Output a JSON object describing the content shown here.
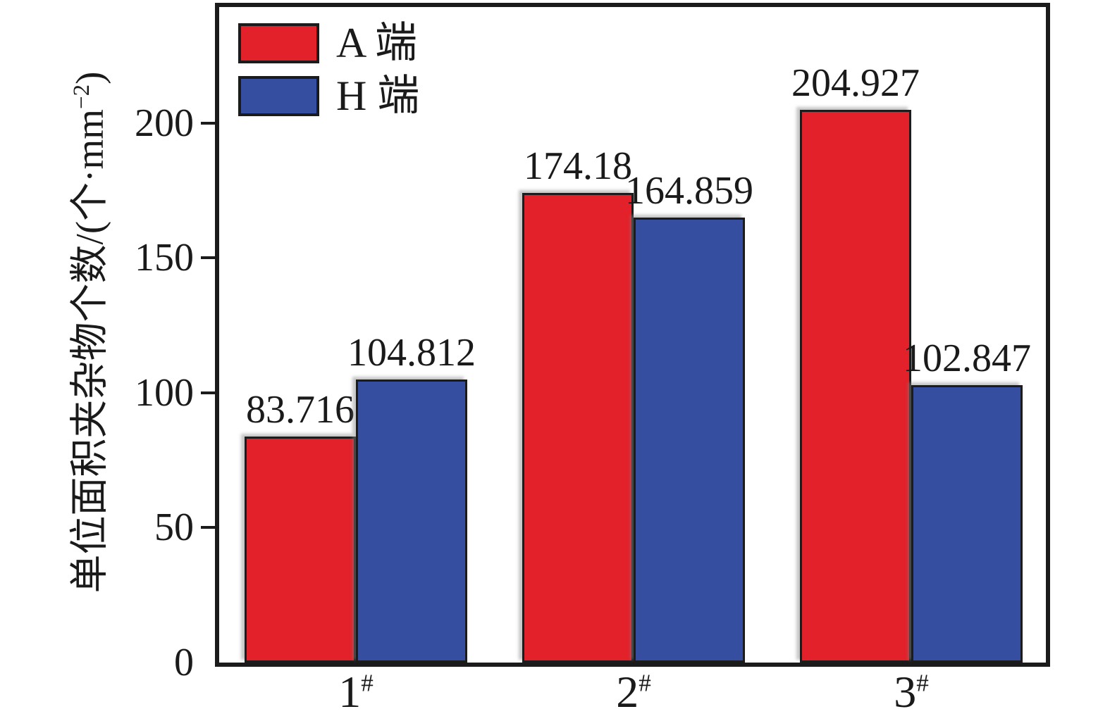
{
  "chart_data": {
    "type": "bar",
    "title": "",
    "categories": [
      "1",
      "2",
      "3"
    ],
    "category_suffix": "#",
    "series": [
      {
        "name": "A 端",
        "color": "#e2212a",
        "values": [
          83.716,
          174.18,
          204.927
        ],
        "labels": [
          "83.716",
          "174.18",
          "204.927"
        ]
      },
      {
        "name": "H 端",
        "color": "#364ea0",
        "values": [
          104.812,
          164.859,
          102.847
        ],
        "labels": [
          "104.812",
          "164.859",
          "102.847"
        ]
      }
    ],
    "ylabel_prefix": "单位面积夹杂物个数/(个·mm",
    "ylabel_sup": "−2",
    "ylabel_suffix": ")",
    "xlabel": "",
    "yticks": [
      0,
      50,
      100,
      150,
      200
    ],
    "ylim": [
      0,
      243
    ],
    "grid": false,
    "legend_position": "top-left",
    "bar_border_color": "#1c1c1c",
    "axis_color": "#1b1b1b"
  }
}
